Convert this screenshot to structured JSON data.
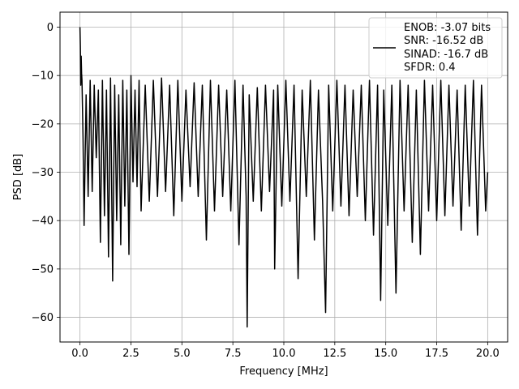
{
  "chart_data": {
    "type": "line",
    "xlabel": "Frequency [MHz]",
    "ylabel": "PSD [dB]",
    "xlim": [
      -0.98,
      20.98
    ],
    "ylim": [
      -65.1,
      3.1
    ],
    "xticks": [
      0.0,
      2.5,
      5.0,
      7.5,
      10.0,
      12.5,
      15.0,
      17.5,
      20.0
    ],
    "xtick_labels": [
      "0.0",
      "2.5",
      "5.0",
      "7.5",
      "10.0",
      "12.5",
      "15.0",
      "17.5",
      "20.0"
    ],
    "yticks": [
      0,
      -10,
      -20,
      -30,
      -40,
      -50,
      -60
    ],
    "ytick_labels": [
      "0",
      "−10",
      "−20",
      "−30",
      "−40",
      "−50",
      "−60"
    ],
    "grid": true,
    "legend_position": "top-right",
    "legend_lines": [
      "ENOB: -3.07 bits",
      "SNR: -16.52 dB",
      "SINAD: -16.7 dB",
      "SFDR: 0.4"
    ],
    "series_color": "#000000",
    "series": [
      {
        "x": [
          0.0,
          0.02,
          0.04,
          0.06,
          0.08,
          0.1,
          0.15,
          0.2,
          0.3,
          0.4,
          0.5,
          0.6,
          0.7,
          0.8,
          0.9,
          1.0,
          1.1,
          1.2,
          1.3,
          1.4,
          1.5,
          1.6,
          1.7,
          1.8,
          1.9,
          2.0,
          2.1,
          2.2,
          2.3,
          2.4,
          2.5,
          2.6,
          2.7,
          2.8,
          2.9,
          3.0,
          3.2,
          3.4,
          3.6,
          3.8,
          4.0,
          4.2,
          4.4,
          4.6,
          4.8,
          5.0,
          5.2,
          5.4,
          5.6,
          5.8,
          6.0,
          6.2,
          6.4,
          6.6,
          6.8,
          7.0,
          7.2,
          7.4,
          7.6,
          7.8,
          8.0,
          8.15,
          8.2,
          8.3,
          8.5,
          8.7,
          8.9,
          9.1,
          9.3,
          9.5,
          9.55,
          9.7,
          9.9,
          10.1,
          10.3,
          10.5,
          10.7,
          10.9,
          11.1,
          11.3,
          11.5,
          11.7,
          11.9,
          12.05,
          12.2,
          12.4,
          12.6,
          12.8,
          13.0,
          13.2,
          13.4,
          13.6,
          13.8,
          14.0,
          14.2,
          14.4,
          14.6,
          14.75,
          14.9,
          15.1,
          15.3,
          15.5,
          15.7,
          15.9,
          16.1,
          16.3,
          16.5,
          16.7,
          16.9,
          17.1,
          17.3,
          17.5,
          17.7,
          17.9,
          18.1,
          18.3,
          18.5,
          18.7,
          18.9,
          19.1,
          19.3,
          19.5,
          19.7,
          19.9,
          20.0
        ],
        "y": [
          0.0,
          -4.0,
          -12.0,
          -6.0,
          -9.5,
          -11.0,
          -23.0,
          -41.0,
          -14.0,
          -35.0,
          -11.0,
          -34.0,
          -12.0,
          -27.0,
          -13.0,
          -44.5,
          -11.0,
          -39.0,
          -13.0,
          -47.5,
          -10.5,
          -52.5,
          -12.0,
          -40.0,
          -14.0,
          -45.0,
          -11.0,
          -37.0,
          -13.0,
          -47.0,
          -10.0,
          -32.0,
          -13.0,
          -33.0,
          -11.0,
          -38.0,
          -12.0,
          -36.0,
          -11.0,
          -35.0,
          -10.5,
          -34.0,
          -12.0,
          -39.0,
          -11.0,
          -36.0,
          -13.0,
          -33.0,
          -11.5,
          -35.0,
          -12.0,
          -44.0,
          -11.0,
          -38.0,
          -12.0,
          -35.0,
          -13.0,
          -38.0,
          -11.0,
          -45.0,
          -12.0,
          -35.0,
          -62.0,
          -14.0,
          -36.0,
          -12.5,
          -38.0,
          -12.0,
          -34.0,
          -13.0,
          -50.0,
          -12.0,
          -37.0,
          -11.0,
          -36.0,
          -12.0,
          -52.0,
          -13.0,
          -35.0,
          -11.0,
          -44.0,
          -13.0,
          -36.0,
          -59.0,
          -12.0,
          -38.0,
          -11.0,
          -37.0,
          -12.0,
          -39.0,
          -13.0,
          -35.0,
          -12.0,
          -40.0,
          -11.0,
          -43.0,
          -12.0,
          -56.5,
          -13.0,
          -41.0,
          -12.0,
          -55.0,
          -11.0,
          -38.0,
          -12.0,
          -44.5,
          -13.0,
          -47.0,
          -11.0,
          -38.0,
          -12.0,
          -40.0,
          -11.0,
          -39.0,
          -12.0,
          -37.0,
          -13.0,
          -42.0,
          -12.0,
          -37.0,
          -11.0,
          -43.0,
          -12.0,
          -38.0,
          -30.0
        ]
      }
    ]
  }
}
